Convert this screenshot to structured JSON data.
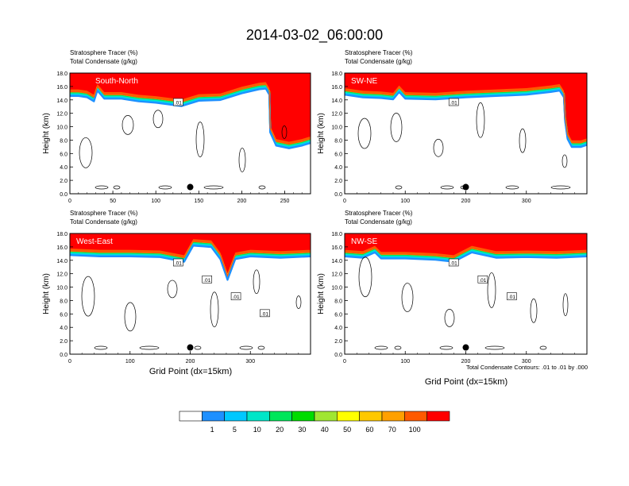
{
  "title": "2014-03-02_06:00:00",
  "panel_title_line1": "Stratosphere Tracer   (%)",
  "panel_title_line2": "Total Condensate   (g/kg)",
  "ylabel": "Height (km)",
  "xlabel": "Grid Point (dx=15km)",
  "contour_note": "Total Condensate Contours: .01 to .01 by .000",
  "colorbar": {
    "levels": [
      "1",
      "5",
      "10",
      "20",
      "30",
      "40",
      "50",
      "60",
      "70",
      "100"
    ],
    "colors": [
      "#ffffff",
      "#1e90ff",
      "#00c8ff",
      "#00e6c8",
      "#00e65a",
      "#00dc00",
      "#a0e632",
      "#ffff00",
      "#ffc800",
      "#ffa000",
      "#ff5a00",
      "#ff0000"
    ]
  },
  "chart_data": [
    {
      "type": "heatmap",
      "name": "South-North",
      "xlim": [
        0,
        280
      ],
      "ylim": [
        0,
        18
      ],
      "xticks": [
        "0",
        "50",
        "100",
        "150",
        "200",
        "250"
      ],
      "yticks": [
        "0.0",
        "2.0",
        "4.0",
        "6.0",
        "8.0",
        "10.0",
        "12.0",
        "14.0",
        "16.0",
        "18.0"
      ],
      "contour_labels": [
        ".01"
      ],
      "tropopause": [
        [
          0,
          15.2
        ],
        [
          10,
          15.2
        ],
        [
          20,
          15.0
        ],
        [
          28,
          14.4
        ],
        [
          32,
          16.0
        ],
        [
          40,
          14.8
        ],
        [
          60,
          14.8
        ],
        [
          80,
          14.4
        ],
        [
          100,
          14.2
        ],
        [
          130,
          13.7
        ],
        [
          150,
          14.5
        ],
        [
          175,
          14.6
        ],
        [
          200,
          15.6
        ],
        [
          220,
          16.2
        ],
        [
          228,
          16.3
        ],
        [
          232,
          15.4
        ],
        [
          233,
          10.5
        ],
        [
          233,
          9.8
        ],
        [
          240,
          7.8
        ],
        [
          255,
          7.4
        ],
        [
          270,
          7.8
        ],
        [
          280,
          8.2
        ]
      ],
      "marker": [
        140,
        1.0
      ]
    },
    {
      "type": "heatmap",
      "name": "SW-NE",
      "xlim": [
        0,
        400
      ],
      "ylim": [
        0,
        18
      ],
      "xticks": [
        "0",
        "100",
        "200",
        "300"
      ],
      "yticks": [
        "0.0",
        "2.0",
        "4.0",
        "6.0",
        "8.0",
        "10.0",
        "12.0",
        "14.0",
        "16.0",
        "18.0"
      ],
      "contour_labels": [
        ".01"
      ],
      "tropopause": [
        [
          0,
          15.4
        ],
        [
          30,
          15.0
        ],
        [
          60,
          14.9
        ],
        [
          80,
          14.7
        ],
        [
          90,
          15.8
        ],
        [
          100,
          14.8
        ],
        [
          150,
          14.7
        ],
        [
          200,
          15.0
        ],
        [
          250,
          15.2
        ],
        [
          300,
          15.4
        ],
        [
          340,
          15.8
        ],
        [
          355,
          16.0
        ],
        [
          362,
          15.0
        ],
        [
          364,
          11.5
        ],
        [
          368,
          8.8
        ],
        [
          375,
          7.6
        ],
        [
          390,
          7.6
        ],
        [
          400,
          7.9
        ]
      ],
      "marker": [
        200,
        1.0
      ]
    },
    {
      "type": "heatmap",
      "name": "West-East",
      "xlim": [
        0,
        400
      ],
      "ylim": [
        0,
        18
      ],
      "xticks": [
        "0",
        "100",
        "200",
        "300"
      ],
      "yticks": [
        "0.0",
        "2.0",
        "4.0",
        "6.0",
        "8.0",
        "10.0",
        "12.0",
        "14.0",
        "16.0",
        "18.0"
      ],
      "contour_labels": [
        ".01",
        ".01",
        ".01",
        ".01"
      ],
      "tropopause": [
        [
          0,
          15.4
        ],
        [
          50,
          15.2
        ],
        [
          100,
          15.2
        ],
        [
          150,
          15.1
        ],
        [
          190,
          14.4
        ],
        [
          205,
          16.8
        ],
        [
          235,
          16.6
        ],
        [
          250,
          14.8
        ],
        [
          262,
          11.7
        ],
        [
          275,
          14.8
        ],
        [
          300,
          15.2
        ],
        [
          350,
          15.0
        ],
        [
          400,
          15.2
        ]
      ],
      "marker": [
        200,
        1.0
      ]
    },
    {
      "type": "heatmap",
      "name": "NW-SE",
      "xlim": [
        0,
        400
      ],
      "ylim": [
        0,
        18
      ],
      "xticks": [
        "0",
        "100",
        "200",
        "300"
      ],
      "yticks": [
        "0.0",
        "2.0",
        "4.0",
        "6.0",
        "8.0",
        "10.0",
        "12.0",
        "14.0",
        "16.0",
        "18.0"
      ],
      "contour_labels": [
        ".01",
        ".01",
        ".01"
      ],
      "tropopause": [
        [
          0,
          15.2
        ],
        [
          30,
          15.0
        ],
        [
          50,
          15.8
        ],
        [
          60,
          14.9
        ],
        [
          100,
          14.9
        ],
        [
          150,
          14.7
        ],
        [
          180,
          14.4
        ],
        [
          210,
          15.8
        ],
        [
          250,
          15.0
        ],
        [
          300,
          15.1
        ],
        [
          350,
          15.0
        ],
        [
          400,
          15.2
        ]
      ],
      "marker": [
        200,
        1.0
      ]
    }
  ]
}
